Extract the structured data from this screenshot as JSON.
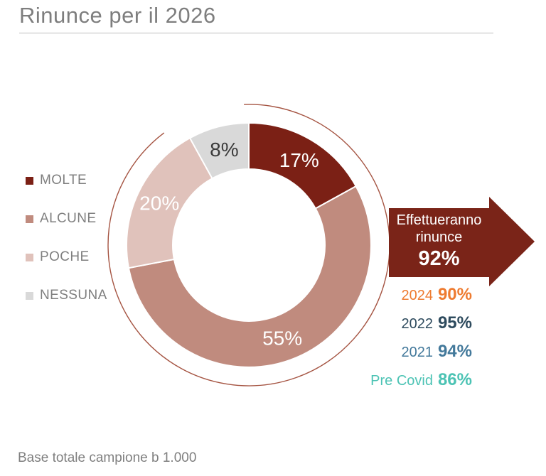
{
  "header": {
    "title": "Rinunce per il 2026"
  },
  "chart_data": {
    "type": "pie",
    "subtype": "donut",
    "title": "Rinunce per il 2026",
    "categories": [
      "MOLTE",
      "ALCUNE",
      "POCHE",
      "NESSUNA"
    ],
    "values": [
      17,
      55,
      20,
      8
    ],
    "labels": [
      "17%",
      "55%",
      "20%",
      "8%"
    ],
    "colors": [
      "#7B2015",
      "#C08B7E",
      "#E0C2BB",
      "#D9D9D9"
    ],
    "label_colors": [
      "#FFFFFF",
      "#FFFFFF",
      "#FFFFFF",
      "#3B3B3B"
    ],
    "start_angle_deg": 0,
    "direction": "clockwise",
    "legend_position": "left",
    "decorative_ring_color": "#A55442",
    "callout": {
      "line1": "Effettueranno",
      "line2": "rinunce",
      "value": "92%",
      "color": "#7A2418"
    },
    "history": {
      "rows": [
        {
          "label": "2024",
          "value": "90%",
          "color": "#EE7B30"
        },
        {
          "label": "2022",
          "value": "95%",
          "color": "#2E4B5E"
        },
        {
          "label": "2021",
          "value": "94%",
          "color": "#43799B"
        },
        {
          "label": "Pre Covid",
          "value": "86%",
          "color": "#4CC3B4"
        }
      ]
    }
  },
  "legend": {
    "items": [
      {
        "label": "MOLTE",
        "color": "#7B2015"
      },
      {
        "label": "ALCUNE",
        "color": "#C08B7E"
      },
      {
        "label": "POCHE",
        "color": "#E0C2BB"
      },
      {
        "label": "NESSUNA",
        "color": "#D9D9D9"
      }
    ]
  },
  "footer": {
    "note": "Base totale campione b 1.000"
  }
}
